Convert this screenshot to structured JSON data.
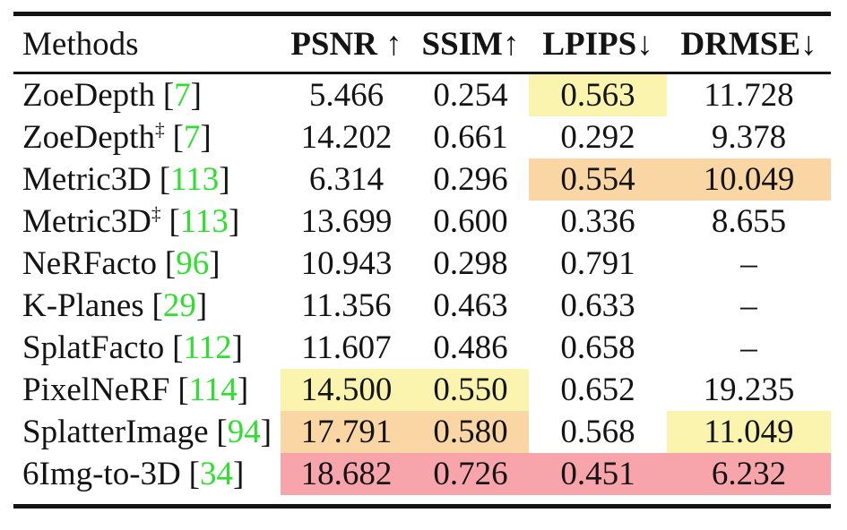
{
  "colors": {
    "highlight_yellow": "#FBF4AE",
    "highlight_orange": "#FAD6A5",
    "highlight_red": "#F8A4AB",
    "citation_green": "#2EE02E",
    "rule": "#141414",
    "text": "#141414"
  },
  "table": {
    "header": {
      "methods": "Methods",
      "metrics": [
        "PSNR ↑",
        "SSIM↑",
        "LPIPS↓",
        "DRMSE↓"
      ]
    },
    "cite_open": "[",
    "cite_close": "]",
    "rows": [
      {
        "method": "ZoeDepth",
        "sup": "",
        "cite": "7",
        "values": {
          "psnr": "5.466",
          "ssim": "0.254",
          "lpips": "0.563",
          "drmse": "11.728"
        },
        "hl": {
          "psnr": "",
          "ssim": "",
          "lpips": "yellow",
          "drmse": ""
        }
      },
      {
        "method": "ZoeDepth",
        "sup": "‡",
        "cite": "7",
        "values": {
          "psnr": "14.202",
          "ssim": "0.661",
          "lpips": "0.292",
          "drmse": "9.378"
        },
        "hl": {
          "psnr": "",
          "ssim": "",
          "lpips": "",
          "drmse": ""
        }
      },
      {
        "method": "Metric3D",
        "sup": "",
        "cite": "113",
        "values": {
          "psnr": "6.314",
          "ssim": "0.296",
          "lpips": "0.554",
          "drmse": "10.049"
        },
        "hl": {
          "psnr": "",
          "ssim": "",
          "lpips": "orange",
          "drmse": "orange"
        }
      },
      {
        "method": "Metric3D",
        "sup": "‡",
        "cite": "113",
        "values": {
          "psnr": "13.699",
          "ssim": "0.600",
          "lpips": "0.336",
          "drmse": "8.655"
        },
        "hl": {
          "psnr": "",
          "ssim": "",
          "lpips": "",
          "drmse": ""
        }
      },
      {
        "method": "NeRFacto",
        "sup": "",
        "cite": "96",
        "values": {
          "psnr": "10.943",
          "ssim": "0.298",
          "lpips": "0.791",
          "drmse": "–"
        },
        "hl": {
          "psnr": "",
          "ssim": "",
          "lpips": "",
          "drmse": ""
        }
      },
      {
        "method": "K-Planes",
        "sup": "",
        "cite": "29",
        "values": {
          "psnr": "11.356",
          "ssim": "0.463",
          "lpips": "0.633",
          "drmse": "–"
        },
        "hl": {
          "psnr": "",
          "ssim": "",
          "lpips": "",
          "drmse": ""
        }
      },
      {
        "method": "SplatFacto",
        "sup": "",
        "cite": "112",
        "values": {
          "psnr": "11.607",
          "ssim": "0.486",
          "lpips": "0.658",
          "drmse": "–"
        },
        "hl": {
          "psnr": "",
          "ssim": "",
          "lpips": "",
          "drmse": ""
        }
      },
      {
        "method": "PixelNeRF",
        "sup": "",
        "cite": "114",
        "values": {
          "psnr": "14.500",
          "ssim": "0.550",
          "lpips": "0.652",
          "drmse": "19.235"
        },
        "hl": {
          "psnr": "yellow",
          "ssim": "yellow",
          "lpips": "",
          "drmse": ""
        }
      },
      {
        "method": "SplatterImage",
        "sup": "",
        "cite": "94",
        "values": {
          "psnr": "17.791",
          "ssim": "0.580",
          "lpips": "0.568",
          "drmse": "11.049"
        },
        "hl": {
          "psnr": "orange",
          "ssim": "orange",
          "lpips": "",
          "drmse": "yellow"
        }
      },
      {
        "method": "6Img-to-3D",
        "sup": "",
        "cite": "34",
        "values": {
          "psnr": "18.682",
          "ssim": "0.726",
          "lpips": "0.451",
          "drmse": "6.232"
        },
        "hl": {
          "psnr": "red",
          "ssim": "red",
          "lpips": "red",
          "drmse": "red"
        }
      }
    ]
  }
}
